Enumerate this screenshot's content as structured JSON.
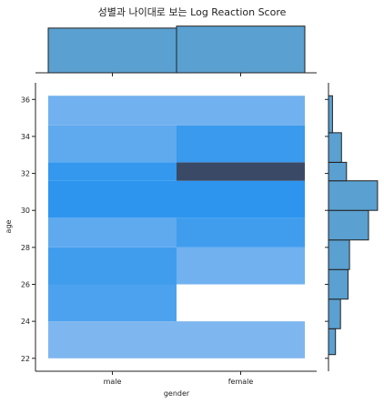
{
  "chart_data": {
    "type": "heatmap",
    "title": "성별과 나이대로 보는 Log Reaction Score",
    "xlabel": "gender",
    "ylabel": "age",
    "categories": [
      "male",
      "female"
    ],
    "y_bins": [
      22,
      24,
      26,
      28,
      30,
      32,
      34,
      36
    ],
    "yticks": [
      22,
      24,
      26,
      28,
      30,
      32,
      34,
      36
    ],
    "ylim": [
      21.3,
      36.9
    ],
    "cells": [
      {
        "x": "male",
        "y0": 22,
        "y1": 24,
        "intensity": 0.35
      },
      {
        "x": "male",
        "y0": 24,
        "y1": 26,
        "intensity": 0.75
      },
      {
        "x": "male",
        "y0": 26,
        "y1": 28,
        "intensity": 0.85
      },
      {
        "x": "male",
        "y0": 28,
        "y1": 29.6,
        "intensity": 0.6
      },
      {
        "x": "male",
        "y0": 29.6,
        "y1": 31.6,
        "intensity": 1.0
      },
      {
        "x": "male",
        "y0": 31.6,
        "y1": 32.6,
        "intensity": 0.95
      },
      {
        "x": "male",
        "y0": 32.6,
        "y1": 34.6,
        "intensity": 0.6
      },
      {
        "x": "male",
        "y0": 34.6,
        "y1": 36.2,
        "intensity": 0.45
      },
      {
        "x": "female",
        "y0": 22,
        "y1": 24,
        "intensity": 0.35
      },
      {
        "x": "female",
        "y0": 26,
        "y1": 28,
        "intensity": 0.45
      },
      {
        "x": "female",
        "y0": 28,
        "y1": 29.6,
        "intensity": 0.85
      },
      {
        "x": "female",
        "y0": 29.6,
        "y1": 31.6,
        "intensity": 1.0
      },
      {
        "x": "female",
        "y0": 31.6,
        "y1": 32.6,
        "intensity": 1.75
      },
      {
        "x": "female",
        "y0": 32.6,
        "y1": 34.6,
        "intensity": 0.9
      },
      {
        "x": "female",
        "y0": 34.6,
        "y1": 36.2,
        "intensity": 0.45
      }
    ],
    "marginal_x": {
      "categories": [
        "male",
        "female"
      ],
      "values": [
        0.91,
        0.95
      ],
      "ylim": [
        0,
        1
      ]
    },
    "marginal_y": {
      "bins": [
        [
          22.2,
          23.6
        ],
        [
          23.6,
          25.2
        ],
        [
          25.2,
          26.8
        ],
        [
          26.8,
          28.4
        ],
        [
          28.4,
          30
        ],
        [
          30,
          31.6
        ],
        [
          31.6,
          32.6
        ],
        [
          32.6,
          34.2
        ],
        [
          34.2,
          36.2
        ]
      ],
      "values": [
        0.14,
        0.24,
        0.39,
        0.42,
        0.8,
        0.98,
        0.36,
        0.26,
        0.08
      ],
      "xlim": [
        0,
        1
      ]
    },
    "colors": {
      "bar": "#5aa0d0",
      "edge": "#222222",
      "heat_light": "#a9c8f0",
      "heat_mid": "#2d95ee",
      "heat_dark": "#3a4a66"
    }
  }
}
